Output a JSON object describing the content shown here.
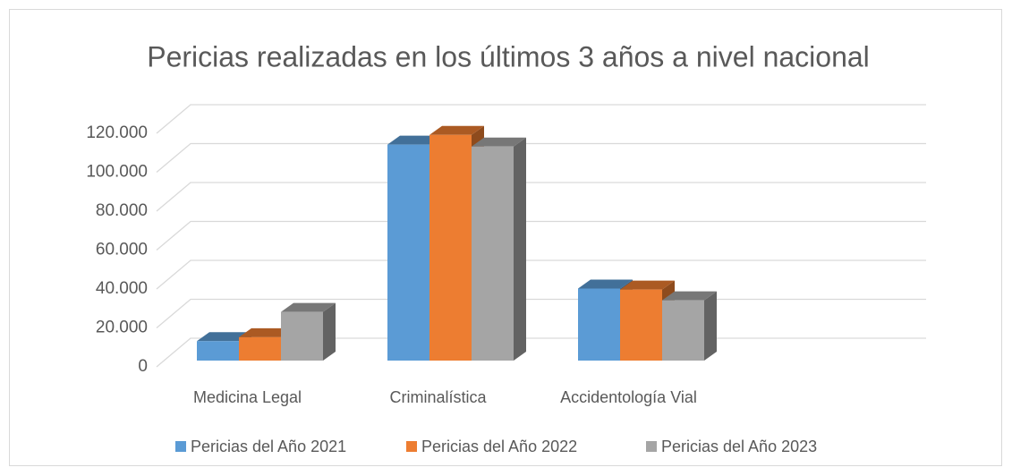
{
  "chart_data": {
    "type": "bar3d",
    "title": "Pericias realizadas en los últimos 3 años a nivel nacional",
    "categories": [
      "Medicina Legal",
      "Criminalística",
      "Accidentología Vial"
    ],
    "series": [
      {
        "name": "Pericias del Año 2021",
        "color": "#5b9bd5",
        "values": [
          10000,
          111000,
          37000
        ]
      },
      {
        "name": "Pericias del Año 2022",
        "color": "#ed7d31",
        "values": [
          12000,
          116000,
          36500
        ]
      },
      {
        "name": "Pericias del Año 2023",
        "color": "#a5a5a5",
        "values": [
          25000,
          110000,
          31000
        ]
      }
    ],
    "ylim": [
      0,
      120000
    ],
    "yticks": [
      0,
      {
        "value": 20000,
        "label": "20.000"
      },
      {
        "value": 40000,
        "label": "40.000"
      },
      {
        "value": 60000,
        "label": "60.000"
      },
      {
        "value": 80000,
        "label": "80.000"
      },
      {
        "value": 100000,
        "label": "100.000"
      },
      {
        "value": 120000,
        "label": "120.000"
      }
    ],
    "grid": true,
    "legend": "bottom"
  }
}
